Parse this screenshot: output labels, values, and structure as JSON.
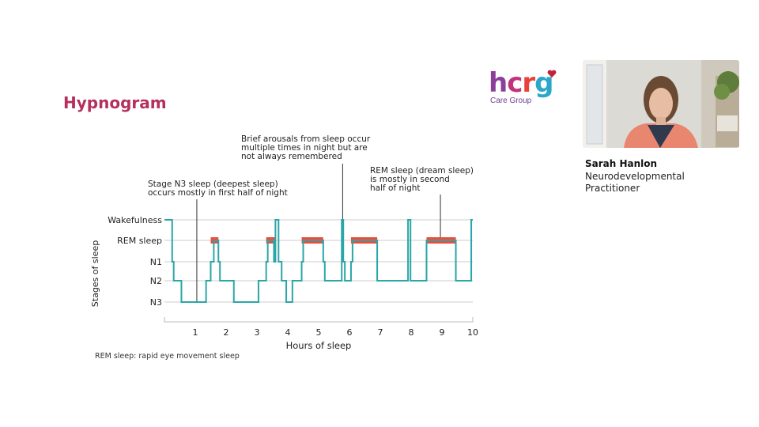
{
  "slide": {
    "title": "Hypnogram",
    "footnote": "REM sleep: rapid eye movement sleep"
  },
  "logo": {
    "letters": [
      "h",
      "c",
      "r",
      "g"
    ],
    "subtitle": "Care Group",
    "colors": [
      "#8b3f9b",
      "#c3337b",
      "#e8413c",
      "#2aa7c9"
    ]
  },
  "presenter": {
    "name": "Sarah Hanlon",
    "role": "Neurodevelopmental Practitioner"
  },
  "annotations": [
    {
      "text": "Stage N3 sleep (deepest sleep)\noccurs mostly in first half of night",
      "hour": 1.05
    },
    {
      "text": "Brief arousals from sleep occur\nmultiple times in night but are\nnot always remembered",
      "hour": 5.78
    },
    {
      "text": "REM sleep (dream sleep)\nis mostly in second\nhalf of night",
      "hour": 8.95
    }
  ],
  "chart_data": {
    "type": "line",
    "step": true,
    "xlabel": "Hours of sleep",
    "ylabel": "Stages of sleep",
    "x_ticks": [
      1,
      2,
      3,
      4,
      5,
      6,
      7,
      8,
      9,
      10
    ],
    "xlim": [
      0,
      10
    ],
    "stages": [
      "Wakefulness",
      "REM sleep",
      "N1",
      "N2",
      "N3"
    ],
    "points": [
      [
        0.0,
        "Wakefulness"
      ],
      [
        0.25,
        "N1"
      ],
      [
        0.3,
        "N2"
      ],
      [
        0.55,
        "N3"
      ],
      [
        1.35,
        "N2"
      ],
      [
        1.5,
        "N1"
      ],
      [
        1.6,
        "REM sleep"
      ],
      [
        1.75,
        "N1"
      ],
      [
        1.8,
        "N2"
      ],
      [
        2.25,
        "N3"
      ],
      [
        3.05,
        "N2"
      ],
      [
        3.3,
        "N1"
      ],
      [
        3.35,
        "REM sleep"
      ],
      [
        3.55,
        "N1"
      ],
      [
        3.6,
        "Wakefulness"
      ],
      [
        3.7,
        "N1"
      ],
      [
        3.8,
        "N2"
      ],
      [
        3.95,
        "N3"
      ],
      [
        4.15,
        "N2"
      ],
      [
        4.45,
        "N1"
      ],
      [
        4.5,
        "REM sleep"
      ],
      [
        5.15,
        "N1"
      ],
      [
        5.2,
        "N2"
      ],
      [
        5.75,
        "Wakefulness"
      ],
      [
        5.8,
        "N1"
      ],
      [
        5.85,
        "N2"
      ],
      [
        6.05,
        "N1"
      ],
      [
        6.1,
        "REM sleep"
      ],
      [
        6.9,
        "N2"
      ],
      [
        7.9,
        "Wakefulness"
      ],
      [
        7.98,
        "N2"
      ],
      [
        8.5,
        "REM sleep"
      ],
      [
        9.45,
        "N2"
      ],
      [
        9.95,
        "Wakefulness"
      ],
      [
        10.0,
        "Wakefulness"
      ]
    ],
    "rem_segments": [
      [
        1.5,
        1.75
      ],
      [
        3.3,
        3.6
      ],
      [
        4.45,
        5.15
      ],
      [
        6.05,
        6.9
      ],
      [
        8.5,
        9.45
      ]
    ],
    "colors": {
      "line": "#2aa6a8",
      "rem": "#ef4d3c",
      "grid": "#cccccc"
    },
    "grid": true
  }
}
